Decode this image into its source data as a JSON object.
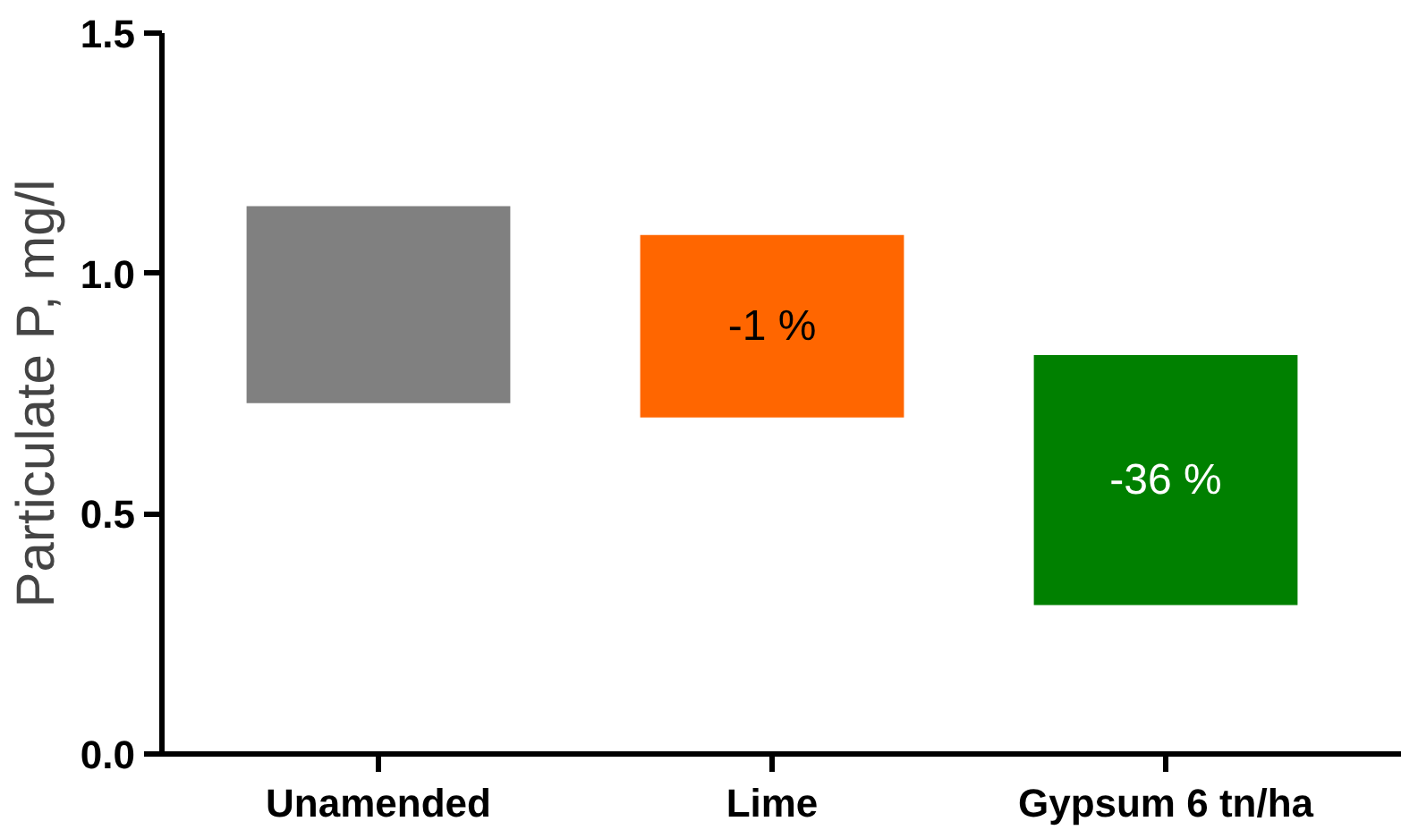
{
  "chart_data": {
    "type": "bar",
    "ylabel": "Particulate P, mg/l",
    "categories": [
      "Unamended",
      "Lime",
      "Gypsum 6 tn/ha"
    ],
    "base": [
      0.73,
      0.7,
      0.31
    ],
    "values": [
      0.41,
      0.38,
      0.52
    ],
    "colors": [
      "#808080",
      "#ff6600",
      "#008000"
    ],
    "ylim": [
      0,
      1.5
    ],
    "yticks": [
      {
        "value": 0,
        "label": "0.0"
      },
      {
        "value": 0.5,
        "label": "0.5"
      },
      {
        "value": 1,
        "label": "1.0"
      },
      {
        "value": 1.5,
        "label": "1.5"
      }
    ],
    "grid": false,
    "annotations": [
      "-1 %",
      "-36 %"
    ]
  }
}
